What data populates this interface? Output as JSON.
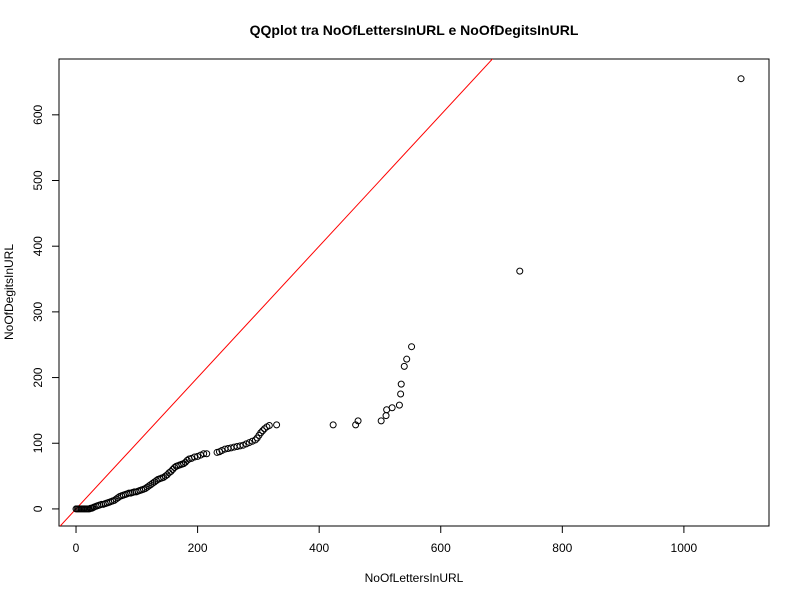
{
  "chart_data": {
    "type": "scatter",
    "title": "QQplot tra NoOfLettersInURL e NoOfDegitsInURL",
    "xlabel": "NoOfLettersInURL",
    "ylabel": "NoOfDegitsInURL",
    "xlim": [
      -28,
      1140
    ],
    "ylim": [
      -26,
      685
    ],
    "xticks": [
      0,
      200,
      400,
      600,
      800,
      1000
    ],
    "yticks": [
      0,
      100,
      200,
      300,
      400,
      500,
      600
    ],
    "grid": false,
    "reference_line": {
      "slope": 1,
      "intercept": 0,
      "color": "#ff0000"
    },
    "point_color": "#000000",
    "points": [
      [
        0,
        0
      ],
      [
        2,
        0
      ],
      [
        4,
        0
      ],
      [
        6,
        0
      ],
      [
        8,
        0
      ],
      [
        10,
        0
      ],
      [
        12,
        0
      ],
      [
        14,
        0
      ],
      [
        16,
        0
      ],
      [
        18,
        0
      ],
      [
        20,
        0
      ],
      [
        22,
        0
      ],
      [
        24,
        1
      ],
      [
        26,
        1
      ],
      [
        28,
        2
      ],
      [
        30,
        3
      ],
      [
        33,
        4
      ],
      [
        36,
        5
      ],
      [
        39,
        6
      ],
      [
        42,
        7
      ],
      [
        45,
        7
      ],
      [
        48,
        8
      ],
      [
        51,
        9
      ],
      [
        54,
        10
      ],
      [
        57,
        11
      ],
      [
        60,
        12
      ],
      [
        63,
        13
      ],
      [
        66,
        15
      ],
      [
        69,
        17
      ],
      [
        72,
        19
      ],
      [
        75,
        20
      ],
      [
        78,
        21
      ],
      [
        81,
        22
      ],
      [
        84,
        23
      ],
      [
        87,
        24
      ],
      [
        90,
        24
      ],
      [
        93,
        25
      ],
      [
        96,
        26
      ],
      [
        99,
        26
      ],
      [
        102,
        27
      ],
      [
        105,
        28
      ],
      [
        108,
        29
      ],
      [
        111,
        30
      ],
      [
        114,
        31
      ],
      [
        117,
        33
      ],
      [
        120,
        35
      ],
      [
        123,
        37
      ],
      [
        126,
        39
      ],
      [
        129,
        41
      ],
      [
        132,
        43
      ],
      [
        135,
        45
      ],
      [
        138,
        46
      ],
      [
        141,
        47
      ],
      [
        144,
        48
      ],
      [
        147,
        50
      ],
      [
        150,
        52
      ],
      [
        153,
        55
      ],
      [
        156,
        57
      ],
      [
        159,
        60
      ],
      [
        162,
        63
      ],
      [
        165,
        65
      ],
      [
        168,
        66
      ],
      [
        171,
        67
      ],
      [
        174,
        68
      ],
      [
        177,
        69
      ],
      [
        180,
        71
      ],
      [
        183,
        74
      ],
      [
        186,
        76
      ],
      [
        190,
        77
      ],
      [
        195,
        79
      ],
      [
        200,
        80
      ],
      [
        205,
        82
      ],
      [
        210,
        84
      ],
      [
        215,
        84
      ],
      [
        232,
        86
      ],
      [
        236,
        87
      ],
      [
        240,
        89
      ],
      [
        245,
        91
      ],
      [
        250,
        92
      ],
      [
        255,
        93
      ],
      [
        260,
        94
      ],
      [
        265,
        95
      ],
      [
        270,
        96
      ],
      [
        275,
        97
      ],
      [
        280,
        99
      ],
      [
        285,
        101
      ],
      [
        290,
        103
      ],
      [
        295,
        105
      ],
      [
        298,
        108
      ],
      [
        301,
        112
      ],
      [
        304,
        116
      ],
      [
        307,
        119
      ],
      [
        310,
        122
      ],
      [
        314,
        125
      ],
      [
        318,
        127
      ],
      [
        330,
        128
      ],
      [
        423,
        128
      ],
      [
        460,
        128
      ],
      [
        464,
        134
      ],
      [
        502,
        134
      ],
      [
        510,
        142
      ],
      [
        511,
        151
      ],
      [
        520,
        154
      ],
      [
        532,
        158
      ],
      [
        534,
        175
      ],
      [
        535,
        190
      ],
      [
        540,
        217
      ],
      [
        544,
        228
      ],
      [
        552,
        247
      ],
      [
        730,
        362
      ],
      [
        1094,
        655
      ]
    ]
  }
}
